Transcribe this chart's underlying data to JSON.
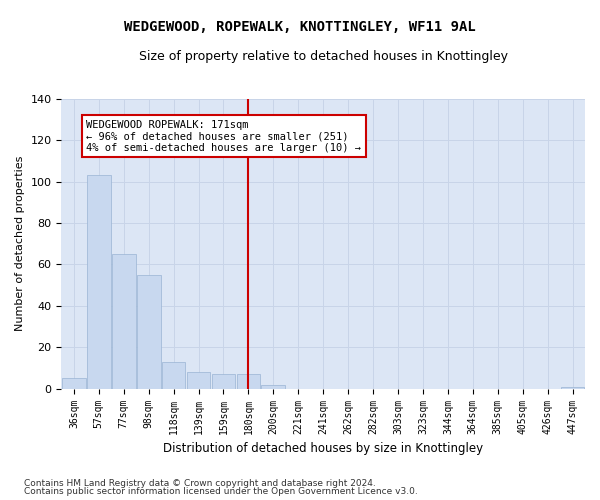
{
  "title": "WEDGEWOOD, ROPEWALK, KNOTTINGLEY, WF11 9AL",
  "subtitle": "Size of property relative to detached houses in Knottingley",
  "xlabel": "Distribution of detached houses by size in Knottingley",
  "ylabel": "Number of detached properties",
  "categories": [
    "36sqm",
    "57sqm",
    "77sqm",
    "98sqm",
    "118sqm",
    "139sqm",
    "159sqm",
    "180sqm",
    "200sqm",
    "221sqm",
    "241sqm",
    "262sqm",
    "282sqm",
    "303sqm",
    "323sqm",
    "344sqm",
    "364sqm",
    "385sqm",
    "405sqm",
    "426sqm",
    "447sqm"
  ],
  "values": [
    5,
    103,
    65,
    55,
    13,
    8,
    7,
    7,
    2,
    0,
    0,
    0,
    0,
    0,
    0,
    0,
    0,
    0,
    0,
    0,
    1
  ],
  "bar_color": "#c8d8ef",
  "bar_edge_color": "#9ab4d4",
  "grid_color": "#c8d4e8",
  "plot_bg_color": "#dce6f5",
  "fig_bg_color": "#ffffff",
  "vline_x": 7,
  "vline_color": "#cc0000",
  "annotation_text": "WEDGEWOOD ROPEWALK: 171sqm\n← 96% of detached houses are smaller (251)\n4% of semi-detached houses are larger (10) →",
  "annotation_box_color": "#ffffff",
  "annotation_box_edge": "#cc0000",
  "ylim": [
    0,
    140
  ],
  "yticks": [
    0,
    20,
    40,
    60,
    80,
    100,
    120,
    140
  ],
  "footer1": "Contains HM Land Registry data © Crown copyright and database right 2024.",
  "footer2": "Contains public sector information licensed under the Open Government Licence v3.0."
}
